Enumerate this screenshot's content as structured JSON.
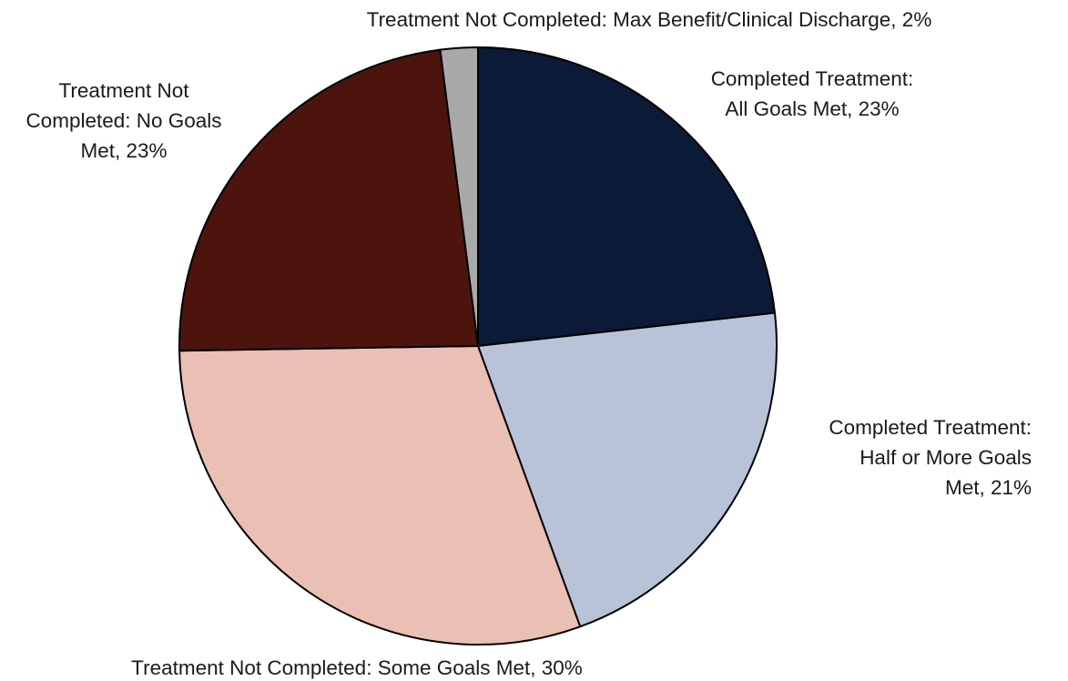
{
  "chart_data": {
    "type": "pie",
    "title": "",
    "slices": [
      {
        "label_lines": [
          "Completed Treatment:",
          "All Goals Met, 23%"
        ],
        "value": 23,
        "color": "#0b1a36"
      },
      {
        "label_lines": [
          "Completed Treatment:",
          "Half or More Goals",
          "Met, 21%"
        ],
        "value": 21,
        "color": "#b8c3d8"
      },
      {
        "label_lines": [
          "Treatment Not Completed: Some Goals Met, 30%"
        ],
        "value": 30,
        "color": "#eabfb4"
      },
      {
        "label_lines": [
          "Treatment Not",
          "Completed: No Goals",
          "Met, 23%"
        ],
        "value": 23,
        "color": "#4d140e"
      },
      {
        "label_lines": [
          "Treatment Not Completed: Max Benefit/Clinical Discharge, 2%"
        ],
        "value": 2,
        "color": "#a9a9a9"
      }
    ],
    "start_angle_deg": 0,
    "direction": "clockwise",
    "border_color": "#000000",
    "legend": "none"
  }
}
